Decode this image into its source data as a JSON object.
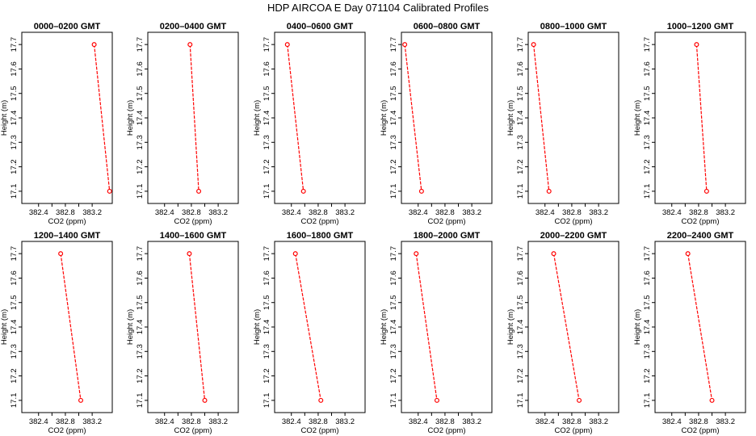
{
  "figure": {
    "title": "HDP  AIRCOA E  Day 071104  Calibrated Profiles"
  },
  "chart_data": {
    "type": "line",
    "title": "HDP  AIRCOA E  Day 071104  Calibrated Profiles",
    "xlabel": "CO2 (ppm)",
    "ylabel": "Height (m)",
    "xlim": [
      382.15,
      383.5
    ],
    "ylim": [
      17.05,
      17.75
    ],
    "xticks": [
      "382.4",
      "382.8",
      "383.2"
    ],
    "yticks": [
      "17.1",
      "17.2",
      "17.3",
      "17.4",
      "17.5",
      "17.6",
      "17.7"
    ],
    "ytick_values": [
      17.1,
      17.2,
      17.3,
      17.4,
      17.5,
      17.6,
      17.7
    ],
    "xtick_values": [
      382.4,
      382.6,
      382.8,
      383.0,
      383.2
    ],
    "xtick_label_values": [
      382.4,
      382.8,
      383.2
    ],
    "grid": false,
    "line_color": "#ff0000",
    "marker": "open-circle",
    "panels": [
      {
        "title": "0000–0200 GMT",
        "points": [
          {
            "x": 383.23,
            "y": 17.7
          },
          {
            "x": 383.46,
            "y": 17.1
          }
        ]
      },
      {
        "title": "0200–0400 GMT",
        "points": [
          {
            "x": 382.78,
            "y": 17.7
          },
          {
            "x": 382.91,
            "y": 17.1
          }
        ]
      },
      {
        "title": "0400–0600 GMT",
        "points": [
          {
            "x": 382.34,
            "y": 17.7
          },
          {
            "x": 382.58,
            "y": 17.1
          }
        ]
      },
      {
        "title": "0600–0800 GMT",
        "points": [
          {
            "x": 382.2,
            "y": 17.7
          },
          {
            "x": 382.45,
            "y": 17.1
          }
        ]
      },
      {
        "title": "0800–1000 GMT",
        "points": [
          {
            "x": 382.23,
            "y": 17.7
          },
          {
            "x": 382.46,
            "y": 17.1
          }
        ]
      },
      {
        "title": "1000–1200 GMT",
        "points": [
          {
            "x": 382.77,
            "y": 17.7
          },
          {
            "x": 382.92,
            "y": 17.1
          }
        ]
      },
      {
        "title": "1200–1400 GMT",
        "points": [
          {
            "x": 382.73,
            "y": 17.7
          },
          {
            "x": 383.03,
            "y": 17.1
          }
        ]
      },
      {
        "title": "1400–1600 GMT",
        "points": [
          {
            "x": 382.77,
            "y": 17.7
          },
          {
            "x": 383.0,
            "y": 17.1
          }
        ]
      },
      {
        "title": "1600–1800 GMT",
        "points": [
          {
            "x": 382.46,
            "y": 17.7
          },
          {
            "x": 382.84,
            "y": 17.1
          }
        ]
      },
      {
        "title": "1800–2000 GMT",
        "points": [
          {
            "x": 382.37,
            "y": 17.7
          },
          {
            "x": 382.68,
            "y": 17.1
          }
        ]
      },
      {
        "title": "2000–2200 GMT",
        "points": [
          {
            "x": 382.53,
            "y": 17.7
          },
          {
            "x": 382.91,
            "y": 17.1
          }
        ]
      },
      {
        "title": "2200–2400 GMT",
        "points": [
          {
            "x": 382.64,
            "y": 17.7
          },
          {
            "x": 383.0,
            "y": 17.1
          }
        ]
      }
    ]
  }
}
